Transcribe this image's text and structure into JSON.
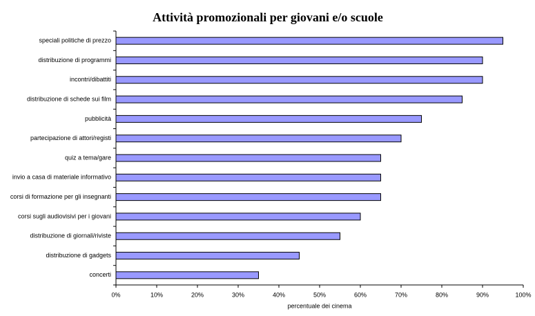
{
  "chart_data": {
    "type": "bar",
    "orientation": "horizontal",
    "title": "Attività promozionali per giovani e/o scuole",
    "x_label": "percentuale dei cinema",
    "categories": [
      "speciali politiche di prezzo",
      "distribuzione di programmi",
      "incontri/dibattiti",
      "distribuzione di schede sui film",
      "pubblicità",
      "partecipazione di attori/registi",
      "quiz a tema/gare",
      "invio a casa di materiale informativo",
      "corsi di formazione per gli insegnanti",
      "corsi sugli audiovisivi per i giovani",
      "distribuzione di giornali/riviste",
      "distribuzione di gadgets",
      "concerti"
    ],
    "values": [
      95,
      90,
      90,
      85,
      75,
      70,
      65,
      65,
      65,
      60,
      55,
      45,
      35
    ],
    "color": "#9999ff",
    "xlim": [
      0,
      100
    ],
    "xticks": [
      {
        "value": 0,
        "label": "0%"
      },
      {
        "value": 10,
        "label": "10%"
      },
      {
        "value": 20,
        "label": "20%"
      },
      {
        "value": 30,
        "label": "30%"
      },
      {
        "value": 40,
        "label": "40%"
      },
      {
        "value": 50,
        "label": "50%"
      },
      {
        "value": 60,
        "label": "60%"
      },
      {
        "value": 70,
        "label": "70%"
      },
      {
        "value": 80,
        "label": "80%"
      },
      {
        "value": 90,
        "label": "90%"
      },
      {
        "value": 100,
        "label": "100%"
      }
    ],
    "grid": false
  }
}
